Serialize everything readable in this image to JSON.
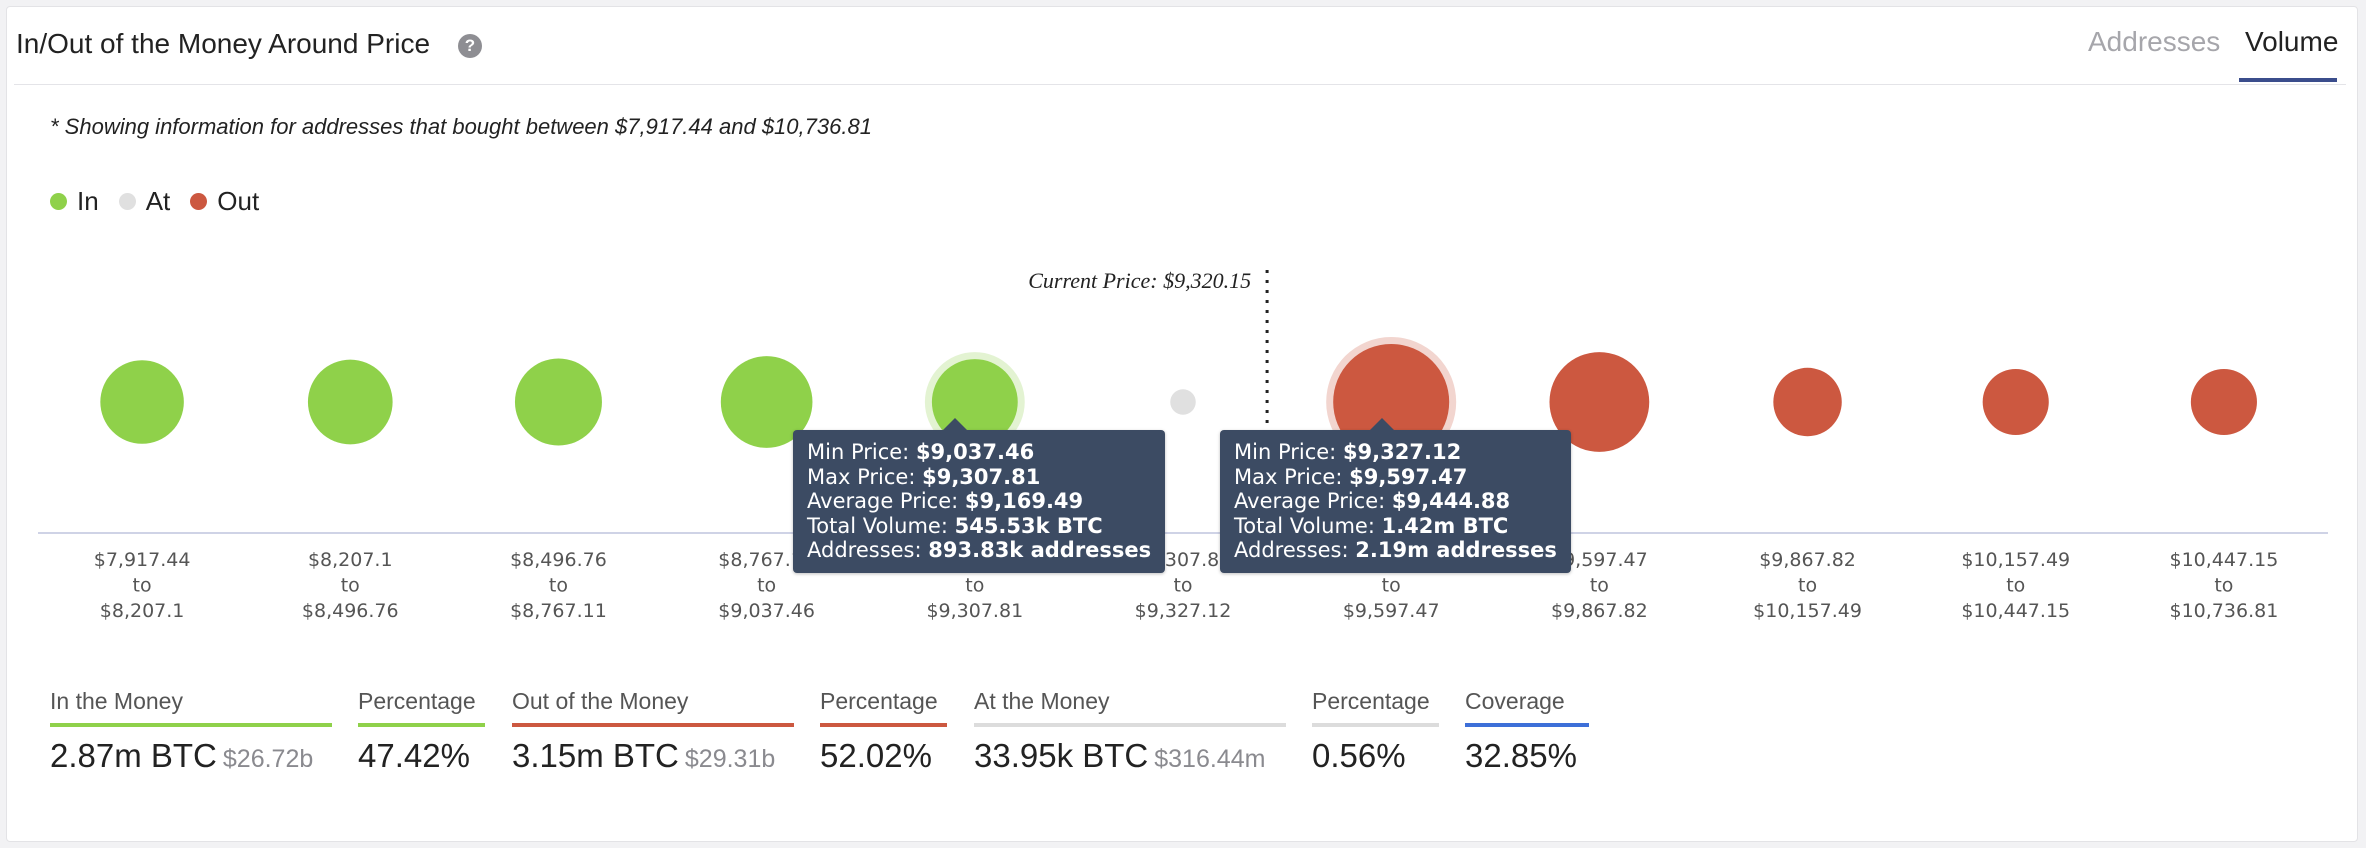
{
  "header": {
    "title": "In/Out of the Money Around Price",
    "help_icon": "question-circle-icon",
    "tabs": [
      {
        "label": "Addresses",
        "active": false
      },
      {
        "label": "Volume",
        "active": true
      }
    ]
  },
  "note": "* Showing information for addresses that bought between $7,917.44 and $10,736.81",
  "legend": [
    {
      "label": "In",
      "color": "#8fd14a"
    },
    {
      "label": "At",
      "color": "#e0e0e0"
    },
    {
      "label": "Out",
      "color": "#cc5840"
    }
  ],
  "chart_data": {
    "type": "scatter",
    "current_price_label": "Current Price: $9,320.15",
    "current_price": 9320.15,
    "clusters": [
      {
        "from": "$7,917.44",
        "to": "$8,207.1",
        "status": "in",
        "relative_size": 0.72
      },
      {
        "from": "$8,207.1",
        "to": "$8,496.76",
        "status": "in",
        "relative_size": 0.73
      },
      {
        "from": "$8,496.76",
        "to": "$8,767.11",
        "status": "in",
        "relative_size": 0.75
      },
      {
        "from": "$8,767.11",
        "to": "$9,037.46",
        "status": "in",
        "relative_size": 0.79
      },
      {
        "from": "$9,037.46",
        "to": "$9,307.81",
        "status": "in",
        "relative_size": 0.74,
        "highlighted": true
      },
      {
        "from": "$9,307.81",
        "to": "$9,327.12",
        "status": "at",
        "relative_size": 0.22
      },
      {
        "from": "$9,327.12",
        "to": "$9,597.47",
        "status": "out",
        "relative_size": 1.0,
        "highlighted": true
      },
      {
        "from": "$9,597.47",
        "to": "$9,867.82",
        "status": "out",
        "relative_size": 0.86
      },
      {
        "from": "$9,867.82",
        "to": "$10,157.49",
        "status": "out",
        "relative_size": 0.59
      },
      {
        "from": "$10,157.49",
        "to": "$10,447.15",
        "status": "out",
        "relative_size": 0.57
      },
      {
        "from": "$10,447.15",
        "to": "$10,736.81",
        "status": "out",
        "relative_size": 0.57
      }
    ],
    "range_connector": "to",
    "colors": {
      "in": "#8fd14a",
      "at": "#e0e0e0",
      "out": "#cc5840"
    }
  },
  "tooltips": [
    {
      "min_label": "Min Price:",
      "min_value": "$9,037.46",
      "max_label": "Max Price:",
      "max_value": "$9,307.81",
      "avg_label": "Average Price:",
      "avg_value": "$9,169.49",
      "vol_label": "Total Volume:",
      "vol_value": "545.53k BTC",
      "addr_label": "Addresses:",
      "addr_value": "893.83k addresses"
    },
    {
      "min_label": "Min Price:",
      "min_value": "$9,327.12",
      "max_label": "Max Price:",
      "max_value": "$9,597.47",
      "avg_label": "Average Price:",
      "avg_value": "$9,444.88",
      "vol_label": "Total Volume:",
      "vol_value": "1.42m BTC",
      "addr_label": "Addresses:",
      "addr_value": "2.19m addresses"
    }
  ],
  "stats": {
    "in_label": "In the Money",
    "in_value": "2.87m BTC",
    "in_sub": "$26.72b",
    "in_pct_label": "Percentage",
    "in_pct": "47.42%",
    "out_label": "Out of the Money",
    "out_value": "3.15m BTC",
    "out_sub": "$29.31b",
    "out_pct_label": "Percentage",
    "out_pct": "52.02%",
    "at_label": "At the Money",
    "at_value": "33.95k BTC",
    "at_sub": "$316.44m",
    "at_pct_label": "Percentage",
    "at_pct": "0.56%",
    "coverage_label": "Coverage",
    "coverage": "32.85%",
    "colors": {
      "in": "#8fd14a",
      "out": "#cc5840",
      "at": "#dcdcdc",
      "coverage": "#3d6fd8"
    }
  }
}
